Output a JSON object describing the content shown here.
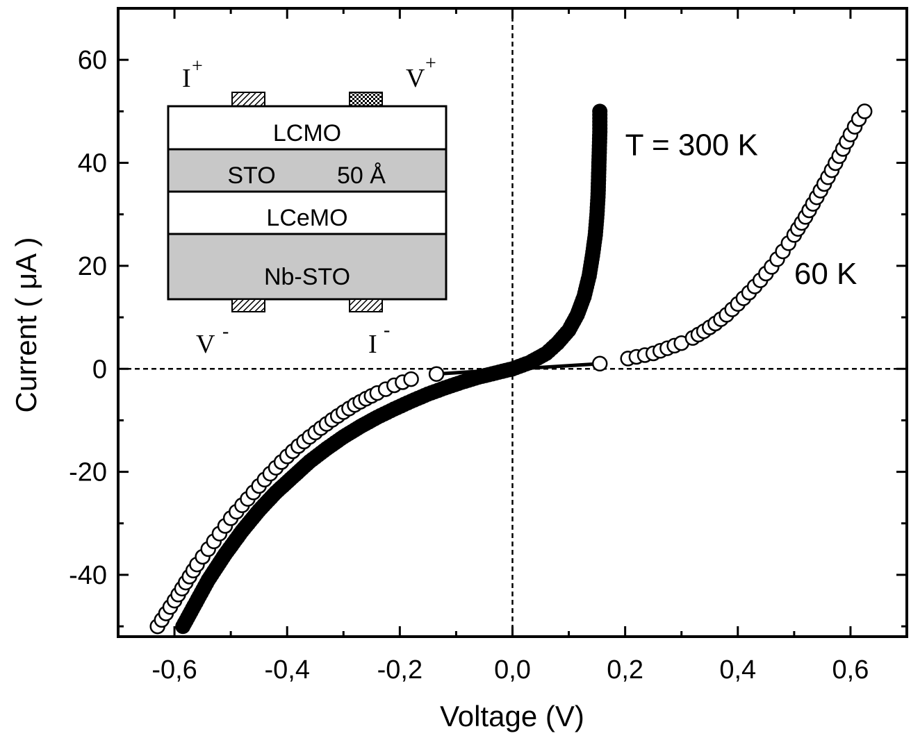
{
  "chart_data": {
    "type": "scatter",
    "title": "",
    "xlabel": "Voltage (V)",
    "ylabel": "Current ( μA )",
    "xlim": [
      -0.7,
      0.7
    ],
    "ylim": [
      -52,
      70
    ],
    "xticks": [
      -0.6,
      -0.4,
      -0.2,
      0.0,
      0.2,
      0.4,
      0.6
    ],
    "xtick_labels": [
      "-0,6",
      "-0,4",
      "-0,2",
      "0,0",
      "0,2",
      "0,4",
      "0,6"
    ],
    "yticks": [
      -40,
      -20,
      0,
      20,
      40,
      60
    ],
    "ytick_labels": [
      "-40",
      "-20",
      "0",
      "20",
      "40",
      "60"
    ],
    "grid": false,
    "legend": "none",
    "reference_lines": {
      "x0": true,
      "y0": true,
      "style": "dashed"
    },
    "series": [
      {
        "name": "T = 300 K",
        "marker": "filled-circle",
        "color": "#000000",
        "x": [
          -0.585,
          -0.565,
          -0.54,
          -0.51,
          -0.48,
          -0.45,
          -0.42,
          -0.39,
          -0.36,
          -0.33,
          -0.3,
          -0.27,
          -0.24,
          -0.21,
          -0.18,
          -0.15,
          -0.12,
          -0.09,
          -0.06,
          -0.03,
          0.0,
          0.03,
          0.06,
          0.08,
          0.1,
          0.115,
          0.127,
          0.136,
          0.142,
          0.147,
          0.15,
          0.152,
          0.153,
          0.154,
          0.155,
          0.155
        ],
        "y": [
          -50,
          -46,
          -41,
          -36,
          -31.5,
          -27.5,
          -24,
          -21,
          -18,
          -15.5,
          -13.2,
          -11.2,
          -9.4,
          -7.8,
          -6.3,
          -4.9,
          -3.7,
          -2.6,
          -1.6,
          -0.8,
          0.0,
          1.2,
          3.0,
          5.0,
          7.5,
          10.5,
          14,
          18,
          22,
          26,
          30,
          34,
          38,
          42,
          46,
          50
        ]
      },
      {
        "name": "60 K",
        "marker": "open-circle",
        "color": "#000000",
        "x": [
          -0.63,
          -0.615,
          -0.6,
          -0.58,
          -0.56,
          -0.54,
          -0.52,
          -0.5,
          -0.48,
          -0.46,
          -0.44,
          -0.42,
          -0.4,
          -0.38,
          -0.36,
          -0.34,
          -0.32,
          -0.3,
          -0.28,
          -0.26,
          -0.24,
          -0.21,
          -0.18,
          -0.135,
          0.155,
          0.205,
          0.25,
          0.275,
          0.3,
          0.32,
          0.34,
          0.36,
          0.38,
          0.4,
          0.42,
          0.44,
          0.46,
          0.48,
          0.5,
          0.52,
          0.54,
          0.56,
          0.58,
          0.6,
          0.615,
          0.625
        ],
        "y": [
          -50,
          -47.5,
          -45,
          -41.5,
          -38,
          -35,
          -32,
          -29,
          -26.5,
          -24,
          -21.5,
          -19.2,
          -17,
          -15,
          -13.2,
          -11.5,
          -9.9,
          -8.4,
          -7,
          -5.8,
          -4.7,
          -3.2,
          -2.0,
          -1.0,
          1.0,
          2.0,
          3.0,
          4.0,
          5.0,
          6.0,
          7.3,
          8.8,
          10.5,
          12.6,
          14.8,
          17.2,
          19.8,
          22.8,
          26,
          29.5,
          33.3,
          37.2,
          41.3,
          45.5,
          48.5,
          50
        ]
      }
    ],
    "annotations": [
      {
        "text": "T = 300 K",
        "x": 0.2,
        "y": 41.5
      },
      {
        "text": "60 K",
        "x": 0.5,
        "y": 16.5
      }
    ],
    "inset": {
      "layers": [
        {
          "label": "LCMO",
          "fill": "#ffffff"
        },
        {
          "label_left": "STO",
          "label_right": "50 Å",
          "fill": "#c8c8c8"
        },
        {
          "label": "LCeMO",
          "fill": "#ffffff"
        },
        {
          "label": "Nb-STO",
          "fill": "#c8c8c8"
        }
      ],
      "contacts": {
        "top_left": {
          "base": "I",
          "sup": "+"
        },
        "top_right": {
          "base": "V",
          "sup": "+"
        },
        "bottom_left": {
          "base": "V",
          "sup": "-"
        },
        "bottom_right": {
          "base": "I",
          "sup": "-"
        }
      }
    }
  }
}
